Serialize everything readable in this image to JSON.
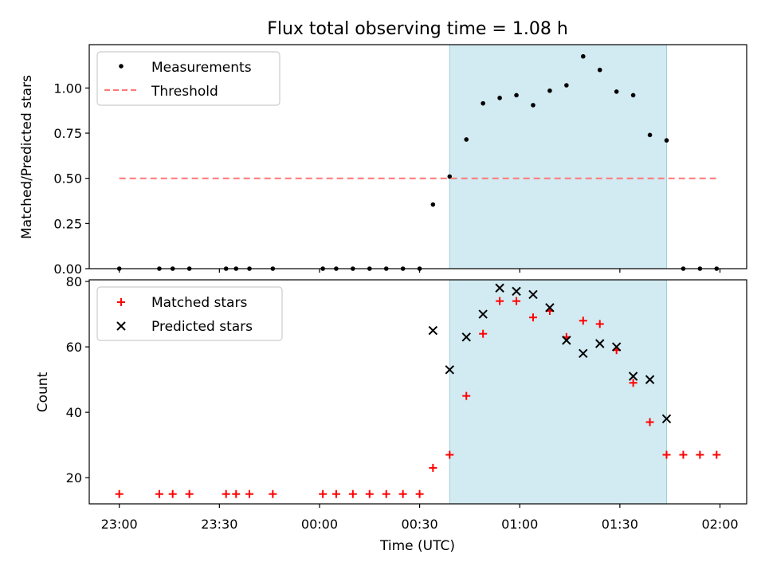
{
  "chart_data": {
    "type": "scatter",
    "title": "Flux total observing time = 1.08 h",
    "xlabel": "Time (UTC)",
    "x_ticks": [
      "23:00",
      "23:30",
      "00:00",
      "00:30",
      "01:00",
      "01:30",
      "02:00"
    ],
    "x_tick_minutes": [
      0,
      30,
      60,
      90,
      120,
      150,
      180
    ],
    "xlim_minutes": [
      -9,
      188
    ],
    "shaded_region_minutes": [
      99,
      164
    ],
    "shaded_color": "#add8e6",
    "panels": [
      {
        "ylabel": "Matched/Predicted stars",
        "ylim": [
          0,
          1.24
        ],
        "y_ticks": [
          "0.00",
          "0.25",
          "0.50",
          "0.75",
          "1.00"
        ],
        "y_tick_values": [
          0,
          0.25,
          0.5,
          0.75,
          1.0
        ],
        "legend_loc": "upper left",
        "series": [
          {
            "name": "Measurements",
            "marker": "dot",
            "color": "#000000",
            "x": [
              0,
              12,
              16,
              21,
              32,
              35,
              39,
              46,
              61,
              65,
              70,
              75,
              80,
              85,
              90,
              94,
              99,
              104,
              109,
              114,
              119,
              124,
              129,
              134,
              139,
              144,
              149,
              154,
              159,
              164,
              169,
              174,
              179
            ],
            "y": [
              0,
              0,
              0,
              0,
              0,
              0,
              0,
              0,
              0,
              0,
              0,
              0,
              0,
              0,
              0,
              0.355,
              0.51,
              0.715,
              0.915,
              0.945,
              0.96,
              0.905,
              0.985,
              1.015,
              1.175,
              1.1,
              0.98,
              0.96,
              0.74,
              0.71,
              0,
              0,
              0
            ]
          },
          {
            "name": "Threshold",
            "marker": "dashed-line",
            "color": "#ff7777",
            "x": [
              0,
              180
            ],
            "y": [
              0.5,
              0.5
            ]
          }
        ]
      },
      {
        "ylabel": "Count",
        "ylim": [
          12,
          80.5
        ],
        "y_ticks": [
          "20",
          "40",
          "60",
          "80"
        ],
        "y_tick_values": [
          20,
          40,
          60,
          80
        ],
        "legend_loc": "upper left",
        "series": [
          {
            "name": "Matched stars",
            "marker": "plus",
            "color": "#ff0000",
            "x": [
              0,
              12,
              16,
              21,
              32,
              35,
              39,
              46,
              61,
              65,
              70,
              75,
              80,
              85,
              90,
              94,
              99,
              104,
              109,
              114,
              119,
              124,
              129,
              134,
              139,
              144,
              149,
              154,
              159,
              164,
              169,
              174,
              179
            ],
            "y": [
              15,
              15,
              15,
              15,
              15,
              15,
              15,
              15,
              15,
              15,
              15,
              15,
              15,
              15,
              15,
              23,
              27,
              45,
              64,
              74,
              74,
              69,
              71,
              63,
              68,
              67,
              59,
              49,
              37,
              27,
              27,
              27,
              27
            ]
          },
          {
            "name": "Predicted stars",
            "marker": "x",
            "color": "#000000",
            "x": [
              94,
              99,
              104,
              109,
              114,
              119,
              124,
              129,
              134,
              139,
              144,
              149,
              154,
              159,
              164
            ],
            "y": [
              65,
              53,
              63,
              70,
              78,
              77,
              76,
              72,
              62,
              58,
              61,
              60,
              51,
              50,
              38
            ]
          }
        ]
      }
    ]
  }
}
